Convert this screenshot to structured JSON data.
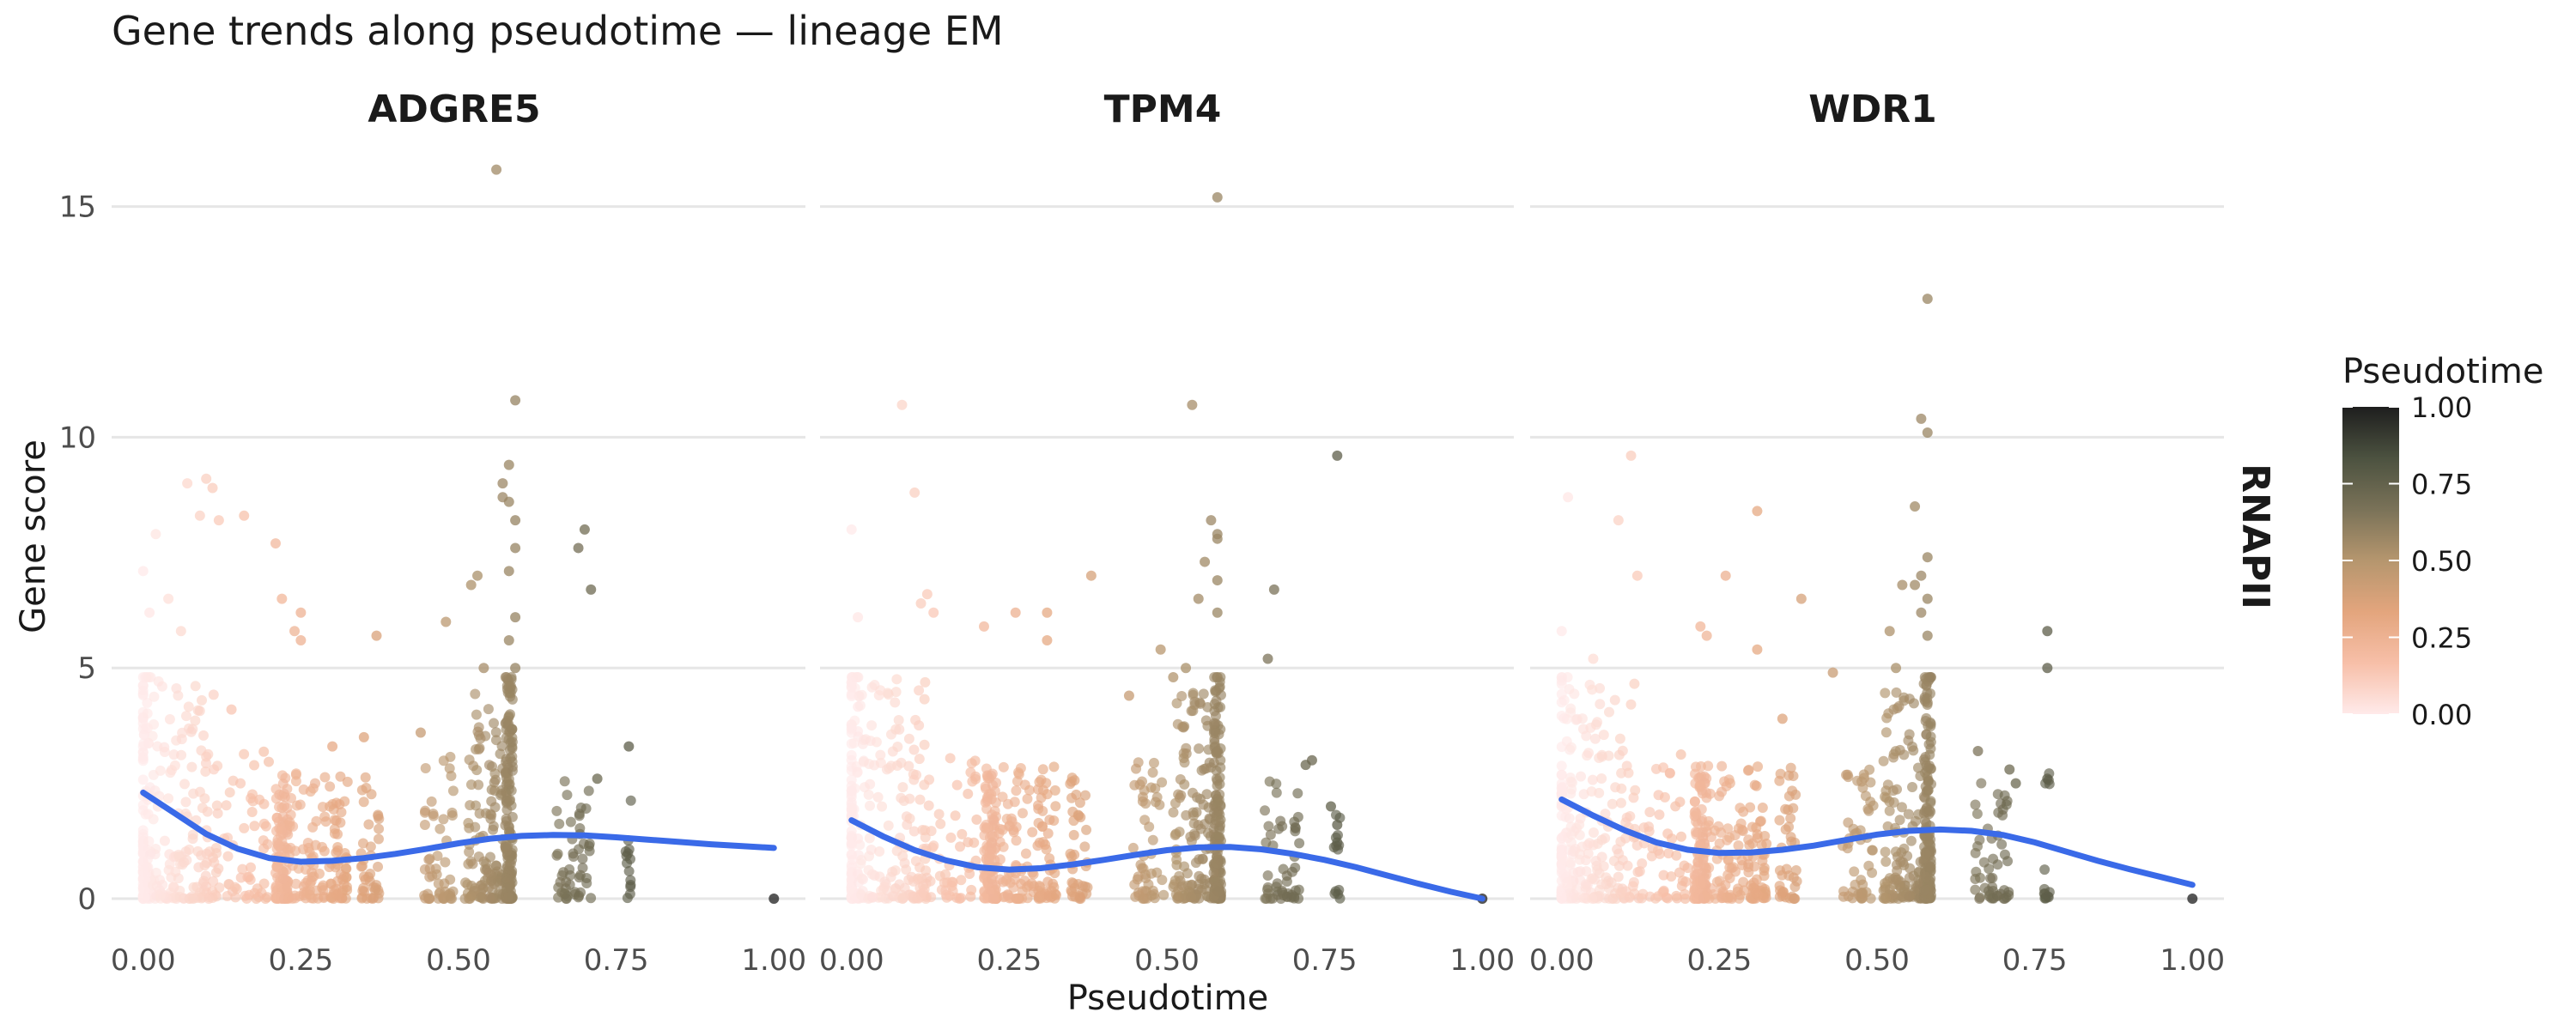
{
  "chart_data": {
    "type": "scatter",
    "title": "Gene trends along pseudotime — lineage EM",
    "xlabel": "Pseudotime",
    "ylabel": "Gene score",
    "facet_row_label": "RNAPII",
    "xlim": [
      -0.05,
      1.05
    ],
    "ylim": [
      -0.8,
      16.5
    ],
    "x_ticks": [
      "0.00",
      "0.25",
      "0.50",
      "0.75",
      "1.00"
    ],
    "y_ticks": [
      "0",
      "5",
      "10",
      "15"
    ],
    "grid": "horizontal-major",
    "legend": {
      "title": "Pseudotime",
      "position": "right",
      "ticks": [
        "0.00",
        "0.25",
        "0.50",
        "0.75",
        "1.00"
      ],
      "colors": [
        "#ffeaea",
        "#f7bfa8",
        "#e3a57d",
        "#b5966e",
        "#7a7258",
        "#4c5240",
        "#1e1e1e"
      ]
    },
    "smooth_color": "#3a6ae8",
    "panels": [
      {
        "name": "ADGRE5",
        "smooth": [
          [
            0.0,
            2.3
          ],
          [
            0.05,
            1.85
          ],
          [
            0.1,
            1.4
          ],
          [
            0.15,
            1.08
          ],
          [
            0.2,
            0.88
          ],
          [
            0.25,
            0.8
          ],
          [
            0.3,
            0.82
          ],
          [
            0.35,
            0.88
          ],
          [
            0.4,
            0.97
          ],
          [
            0.45,
            1.08
          ],
          [
            0.5,
            1.2
          ],
          [
            0.55,
            1.3
          ],
          [
            0.6,
            1.36
          ],
          [
            0.65,
            1.38
          ],
          [
            0.7,
            1.37
          ],
          [
            0.75,
            1.33
          ],
          [
            0.8,
            1.28
          ],
          [
            0.85,
            1.23
          ],
          [
            0.9,
            1.18
          ],
          [
            0.95,
            1.14
          ],
          [
            1.0,
            1.1
          ]
        ],
        "outliers": [
          [
            0.56,
            15.8
          ],
          [
            0.59,
            10.8
          ],
          [
            0.58,
            9.4
          ],
          [
            0.57,
            9.0
          ],
          [
            0.57,
            8.7
          ],
          [
            0.58,
            8.6
          ],
          [
            0.59,
            8.2
          ],
          [
            0.59,
            7.6
          ],
          [
            0.58,
            7.1
          ],
          [
            0.59,
            6.1
          ],
          [
            0.58,
            5.6
          ],
          [
            0.59,
            5.0
          ],
          [
            0.58,
            4.6
          ],
          [
            0.53,
            7.0
          ],
          [
            0.52,
            6.8
          ],
          [
            0.48,
            6.0
          ],
          [
            0.54,
            5.0
          ],
          [
            0.7,
            8.0
          ],
          [
            0.69,
            7.6
          ],
          [
            0.71,
            6.7
          ],
          [
            0.77,
            3.3
          ],
          [
            0.72,
            2.6
          ],
          [
            0.07,
            9.0
          ],
          [
            0.1,
            9.1
          ],
          [
            0.11,
            8.9
          ],
          [
            0.09,
            8.3
          ],
          [
            0.16,
            8.3
          ],
          [
            0.21,
            7.7
          ],
          [
            0.25,
            6.2
          ],
          [
            0.24,
            5.8
          ],
          [
            0.25,
            5.6
          ],
          [
            0.37,
            5.7
          ],
          [
            0.12,
            8.2
          ],
          [
            0.02,
            7.9
          ],
          [
            0.0,
            7.1
          ],
          [
            0.04,
            6.5
          ],
          [
            0.22,
            6.5
          ],
          [
            0.01,
            6.2
          ],
          [
            0.06,
            5.8
          ],
          [
            0.14,
            4.1
          ],
          [
            0.3,
            3.3
          ],
          [
            0.35,
            3.5
          ],
          [
            0.44,
            3.6
          ],
          [
            1.0,
            0.0
          ]
        ]
      },
      {
        "name": "TPM4",
        "smooth": [
          [
            0.0,
            1.7
          ],
          [
            0.05,
            1.35
          ],
          [
            0.1,
            1.05
          ],
          [
            0.15,
            0.83
          ],
          [
            0.2,
            0.68
          ],
          [
            0.25,
            0.63
          ],
          [
            0.3,
            0.66
          ],
          [
            0.35,
            0.74
          ],
          [
            0.4,
            0.84
          ],
          [
            0.45,
            0.95
          ],
          [
            0.5,
            1.05
          ],
          [
            0.55,
            1.11
          ],
          [
            0.6,
            1.12
          ],
          [
            0.65,
            1.07
          ],
          [
            0.7,
            0.97
          ],
          [
            0.75,
            0.84
          ],
          [
            0.8,
            0.68
          ],
          [
            0.85,
            0.5
          ],
          [
            0.9,
            0.32
          ],
          [
            0.95,
            0.15
          ],
          [
            1.0,
            0.0
          ]
        ],
        "outliers": [
          [
            0.58,
            15.2
          ],
          [
            0.54,
            10.7
          ],
          [
            0.08,
            10.7
          ],
          [
            0.77,
            9.6
          ],
          [
            0.1,
            8.8
          ],
          [
            0.0,
            8.0
          ],
          [
            0.57,
            8.2
          ],
          [
            0.58,
            7.9
          ],
          [
            0.58,
            7.8
          ],
          [
            0.56,
            7.3
          ],
          [
            0.58,
            6.9
          ],
          [
            0.38,
            7.0
          ],
          [
            0.67,
            6.7
          ],
          [
            0.55,
            6.5
          ],
          [
            0.58,
            6.2
          ],
          [
            0.12,
            6.6
          ],
          [
            0.11,
            6.4
          ],
          [
            0.13,
            6.2
          ],
          [
            0.26,
            6.2
          ],
          [
            0.31,
            6.2
          ],
          [
            0.21,
            5.9
          ],
          [
            0.31,
            5.6
          ],
          [
            0.49,
            5.4
          ],
          [
            0.53,
            5.0
          ],
          [
            0.66,
            5.2
          ],
          [
            0.01,
            6.1
          ],
          [
            0.44,
            4.4
          ],
          [
            0.51,
            4.8
          ],
          [
            0.73,
            3.0
          ],
          [
            0.72,
            2.9
          ],
          [
            0.76,
            2.0
          ],
          [
            0.77,
            1.6
          ],
          [
            1.0,
            0.0
          ]
        ]
      },
      {
        "name": "WDR1",
        "smooth": [
          [
            0.0,
            2.15
          ],
          [
            0.05,
            1.8
          ],
          [
            0.1,
            1.48
          ],
          [
            0.15,
            1.22
          ],
          [
            0.2,
            1.06
          ],
          [
            0.25,
            0.99
          ],
          [
            0.3,
            1.0
          ],
          [
            0.35,
            1.06
          ],
          [
            0.4,
            1.15
          ],
          [
            0.45,
            1.27
          ],
          [
            0.5,
            1.39
          ],
          [
            0.55,
            1.47
          ],
          [
            0.6,
            1.5
          ],
          [
            0.65,
            1.47
          ],
          [
            0.7,
            1.38
          ],
          [
            0.75,
            1.22
          ],
          [
            0.8,
            1.02
          ],
          [
            0.85,
            0.82
          ],
          [
            0.9,
            0.64
          ],
          [
            0.95,
            0.47
          ],
          [
            1.0,
            0.3
          ]
        ],
        "outliers": [
          [
            0.58,
            13.0
          ],
          [
            0.57,
            10.4
          ],
          [
            0.58,
            10.1
          ],
          [
            0.11,
            9.6
          ],
          [
            0.01,
            8.7
          ],
          [
            0.09,
            8.2
          ],
          [
            0.31,
            8.4
          ],
          [
            0.58,
            7.4
          ],
          [
            0.57,
            7.0
          ],
          [
            0.56,
            8.5
          ],
          [
            0.56,
            6.8
          ],
          [
            0.58,
            6.5
          ],
          [
            0.57,
            6.2
          ],
          [
            0.12,
            7.0
          ],
          [
            0.26,
            7.0
          ],
          [
            0.38,
            6.5
          ],
          [
            0.54,
            6.8
          ],
          [
            0.52,
            5.8
          ],
          [
            0.58,
            5.7
          ],
          [
            0.53,
            5.0
          ],
          [
            0.43,
            4.9
          ],
          [
            0.35,
            3.9
          ],
          [
            0.77,
            5.8
          ],
          [
            0.77,
            5.0
          ],
          [
            0.22,
            5.9
          ],
          [
            0.23,
            5.7
          ],
          [
            0.31,
            5.4
          ],
          [
            0.0,
            5.8
          ],
          [
            0.05,
            5.2
          ],
          [
            0.66,
            3.2
          ],
          [
            0.71,
            2.8
          ],
          [
            0.72,
            2.5
          ],
          [
            0.77,
            2.6
          ],
          [
            1.0,
            0.0
          ]
        ]
      }
    ]
  }
}
